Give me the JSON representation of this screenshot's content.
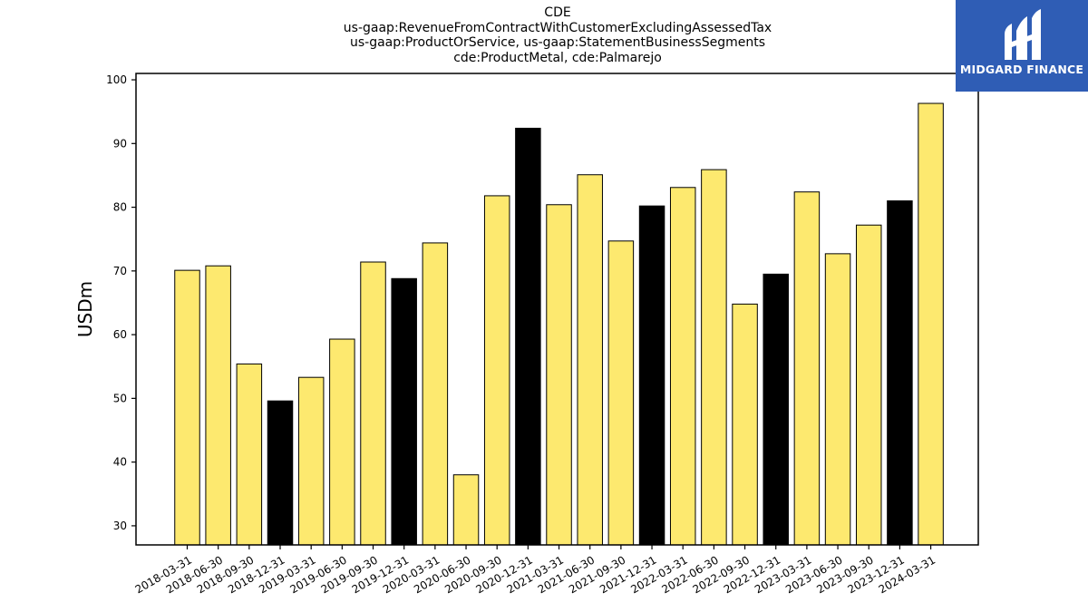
{
  "chart_data": {
    "type": "bar",
    "title_lines": [
      "CDE",
      "us-gaap:RevenueFromContractWithCustomerExcludingAssessedTax",
      "us-gaap:ProductOrService, us-gaap:StatementBusinessSegments",
      "cde:ProductMetal, cde:Palmarejo"
    ],
    "ylabel": "USDm",
    "ylim": [
      27,
      101
    ],
    "yticks": [
      30,
      40,
      50,
      60,
      70,
      80,
      90,
      100
    ],
    "categories": [
      "2018-03-31",
      "2018-06-30",
      "2018-09-30",
      "2018-12-31",
      "2019-03-31",
      "2019-06-30",
      "2019-09-30",
      "2019-12-31",
      "2020-03-31",
      "2020-06-30",
      "2020-09-30",
      "2020-12-31",
      "2021-03-31",
      "2021-06-30",
      "2021-09-30",
      "2021-12-31",
      "2022-03-31",
      "2022-06-30",
      "2022-09-30",
      "2022-12-31",
      "2023-03-31",
      "2023-06-30",
      "2023-09-30",
      "2023-12-31",
      "2024-03-31"
    ],
    "values": [
      70.1,
      70.8,
      55.4,
      49.6,
      53.3,
      59.3,
      71.4,
      68.8,
      74.4,
      38.0,
      81.8,
      92.4,
      80.4,
      85.1,
      74.7,
      80.2,
      83.1,
      85.9,
      64.8,
      69.5,
      82.4,
      72.7,
      77.2,
      81.0,
      96.3
    ],
    "highlight": [
      false,
      false,
      false,
      true,
      false,
      false,
      false,
      true,
      false,
      false,
      false,
      true,
      false,
      false,
      false,
      true,
      false,
      false,
      false,
      true,
      false,
      false,
      false,
      true,
      false
    ],
    "colors": {
      "bar": "#fde96f",
      "highlight": "#000000",
      "edge": "#000000"
    },
    "grid": false,
    "legend": "none"
  },
  "logo": {
    "text": "MIDGARD FINANCE",
    "background": "#2f5db5"
  }
}
